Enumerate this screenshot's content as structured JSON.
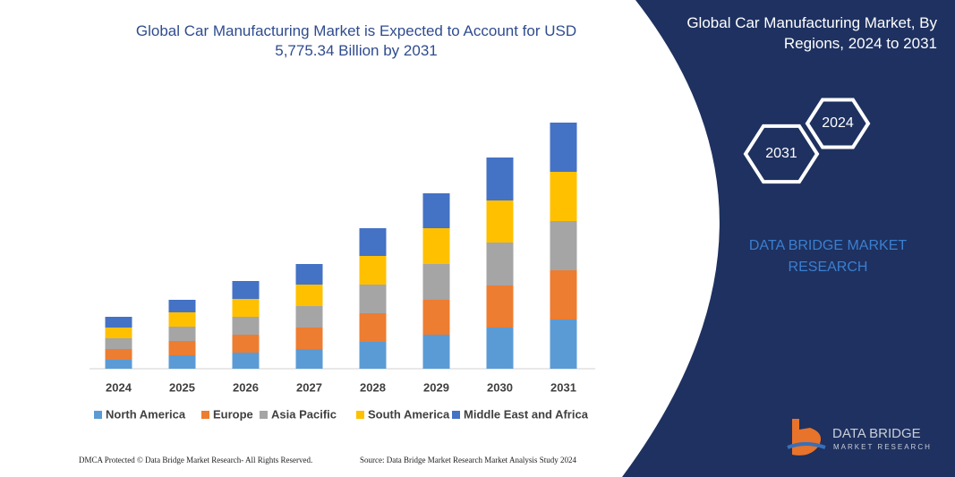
{
  "chart_data": {
    "type": "stacked_bar",
    "title": "Global Car Manufacturing Market is Expected to Account for USD 5,775.34 Billion by 2031",
    "categories": [
      "2024",
      "2025",
      "2026",
      "2027",
      "2028",
      "2029",
      "2030",
      "2031"
    ],
    "series": [
      {
        "name": "North America",
        "color": "#5b9bd5",
        "values": [
          2.0,
          3.0,
          3.6,
          4.4,
          6.0,
          7.6,
          9.2,
          11.0
        ]
      },
      {
        "name": "Europe",
        "color": "#ed7d31",
        "values": [
          2.4,
          3.2,
          4.0,
          4.8,
          6.4,
          7.8,
          9.4,
          11.0
        ]
      },
      {
        "name": "Asia Pacific",
        "color": "#a5a5a5",
        "values": [
          2.4,
          3.2,
          4.0,
          4.8,
          6.4,
          8.0,
          9.6,
          11.0
        ]
      },
      {
        "name": "South America",
        "color": "#ffc000",
        "values": [
          2.4,
          3.2,
          4.0,
          4.8,
          6.4,
          8.0,
          9.4,
          11.0
        ]
      },
      {
        "name": "Middle East and Africa",
        "color": "#4472c4",
        "values": [
          2.4,
          2.8,
          4.0,
          4.6,
          6.2,
          7.8,
          9.6,
          11.0
        ]
      }
    ],
    "ylim": [
      0,
      60
    ]
  },
  "panel": {
    "title": "Global Car Manufacturing Market, By Regions, 2024 to 2031",
    "hexagons": [
      "2024",
      "2031"
    ],
    "brand": "DATA BRIDGE MARKET RESEARCH"
  },
  "logo": {
    "name": "DATA BRIDGE",
    "tagline": "MARKET RESEARCH"
  },
  "footer": {
    "left": "DMCA Protected © Data Bridge Market Research-  All Rights Reserved.",
    "right": "Source: Data Bridge Market Research  Market Analysis Study 2024"
  }
}
